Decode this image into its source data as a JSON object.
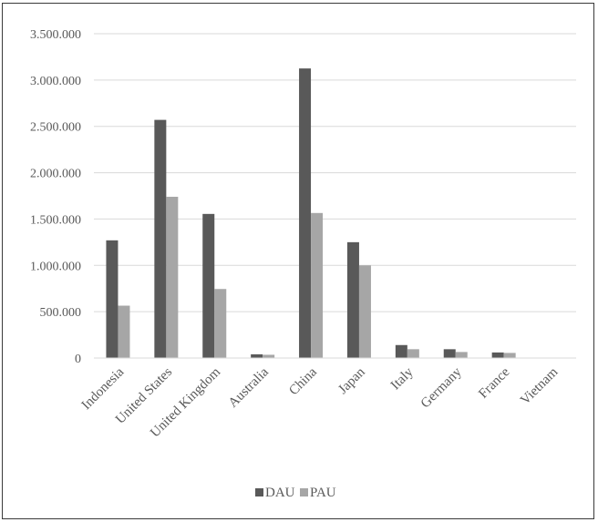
{
  "chart_data": {
    "type": "bar",
    "title": "",
    "xlabel": "",
    "ylabel": "",
    "categories": [
      "Indonesia",
      "United States",
      "United Kingdom",
      "Australia",
      "China",
      "Japan",
      "Italy",
      "Germany",
      "France",
      "Vietnam"
    ],
    "series": [
      {
        "name": "DAU",
        "color": "#595959",
        "values": [
          1270000,
          2570000,
          1555000,
          40000,
          3125000,
          1250000,
          140000,
          95000,
          60000,
          0
        ]
      },
      {
        "name": "PAU",
        "color": "#a6a6a6",
        "values": [
          565000,
          1740000,
          745000,
          35000,
          1565000,
          1000000,
          95000,
          65000,
          55000,
          0
        ]
      }
    ],
    "yticks": [
      0,
      500000,
      1000000,
      1500000,
      2000000,
      2500000,
      3000000,
      3500000
    ],
    "ytick_labels": [
      "0",
      "500.000",
      "1.000.000",
      "1.500.000",
      "2.000.000",
      "2.500.000",
      "3.000.000",
      "3.500.000"
    ],
    "ylim": [
      0,
      3500000
    ],
    "grid": true,
    "legend_position": "bottom"
  }
}
